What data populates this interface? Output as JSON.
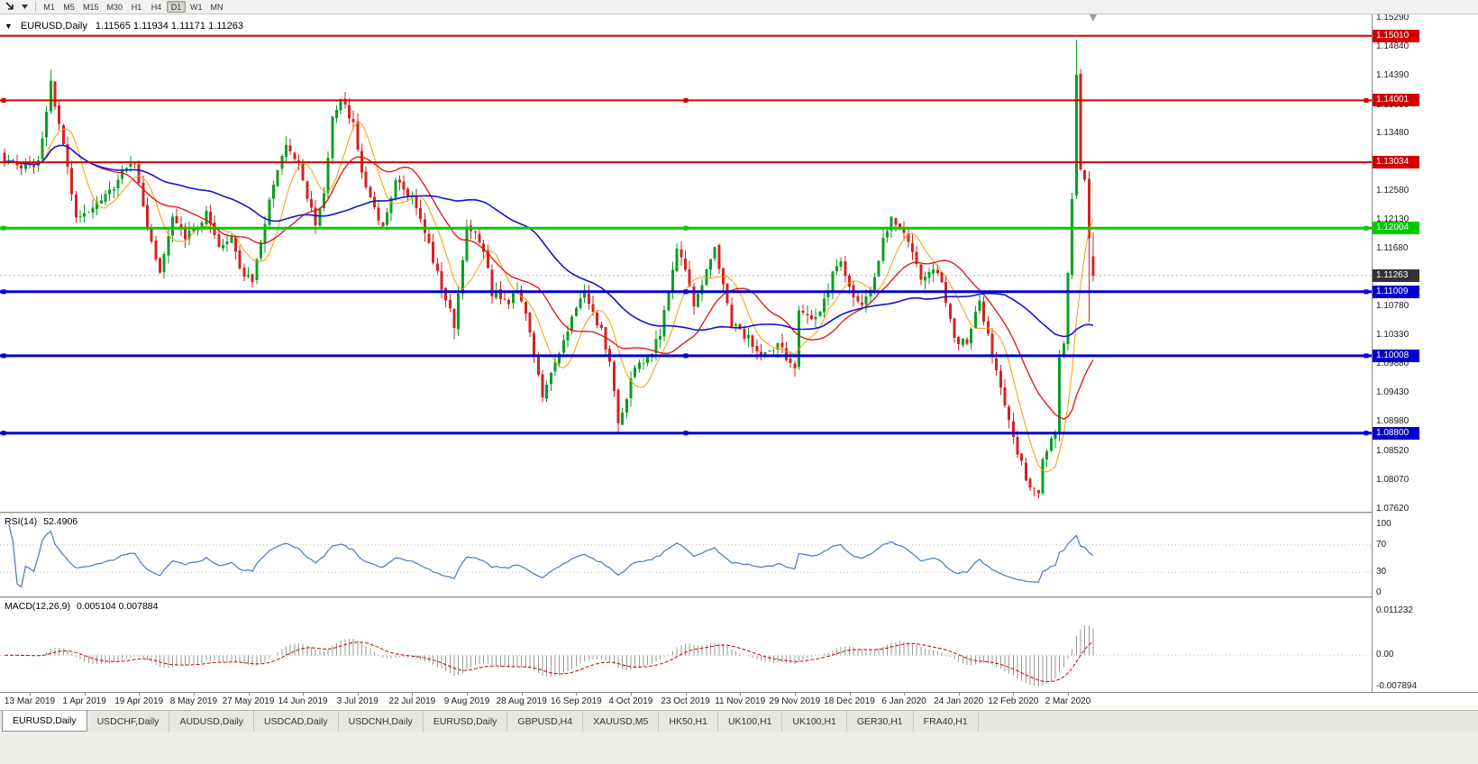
{
  "toolbar": {
    "timeframes": [
      "M1",
      "M5",
      "M15",
      "M30",
      "H1",
      "H4",
      "D1",
      "W1",
      "MN"
    ],
    "active_timeframe": "D1"
  },
  "chart_header": {
    "title": "EURUSD,Daily",
    "ohlc": "1.11565 1.11934 1.11171 1.11263"
  },
  "rsi_panel": {
    "label": "RSI(14)",
    "value": "52.4906"
  },
  "macd_panel": {
    "label": "MACD(12,26,9)",
    "values": "0.005104 0.007884"
  },
  "tabs": {
    "active_index": 0,
    "items": [
      "EURUSD,Daily",
      "USDCHF,Daily",
      "AUDUSD,Daily",
      "USDCAD,Daily",
      "USDCNH,Daily",
      "EURUSD,Daily",
      "GBPUSD,H4",
      "XAUUSD,M5",
      "HK50,H1",
      "UK100,H1",
      "UK100,H1",
      "GER30,H1",
      "FRA40,H1"
    ]
  },
  "chart_data": {
    "type": "candlestick",
    "symbol": "EURUSD",
    "timeframe": "Daily",
    "last_ohlc": {
      "open": "1.11565",
      "high": "1.11934",
      "low": "1.11171",
      "close": "1.11263"
    },
    "price_axis": {
      "top_price": 1.15345,
      "bottom_price": 1.0757,
      "tick_labels": [
        "1.15290",
        "1.14840",
        "1.14390",
        "1.13930",
        "1.13480",
        "1.13030",
        "1.12580",
        "1.12130",
        "1.11680",
        "1.10780",
        "1.10330",
        "1.09880",
        "1.09430",
        "1.08980",
        "1.08520",
        "1.08070",
        "1.07620"
      ]
    },
    "current_price": {
      "label": "1.11263",
      "value": 1.11263,
      "badge_color": "#333333"
    },
    "hlines": [
      {
        "price": 1.1501,
        "label": "1.15010",
        "color": "#d40000",
        "width": 2,
        "handles": false
      },
      {
        "price": 1.14001,
        "label": "1.14001",
        "color": "#d40000",
        "width": 2,
        "handles": true
      },
      {
        "price": 1.13034,
        "label": "1.13034",
        "color": "#d40000",
        "width": 2,
        "handles": false
      },
      {
        "price": 1.12004,
        "label": "1.12004",
        "color": "#00cc00",
        "width": 3,
        "handles": true
      },
      {
        "price": 1.11009,
        "label": "1.11009",
        "color": "#0000cc",
        "width": 3,
        "handles": true
      },
      {
        "price": 1.10008,
        "label": "1.10008",
        "color": "#0000cc",
        "width": 3,
        "handles": true
      },
      {
        "price": 1.088,
        "label": "1.08800",
        "color": "#0000cc",
        "width": 3,
        "handles": true
      }
    ],
    "x_axis": {
      "first_candle_index": 6,
      "step": 13,
      "labels": [
        "13 Mar 2019",
        "1 Apr 2019",
        "19 Apr 2019",
        "8 May 2019",
        "27 May 2019",
        "14 Jun 2019",
        "3 Jul 2019",
        "22 Jul 2019",
        "9 Aug 2019",
        "28 Aug 2019",
        "16 Sep 2019",
        "4 Oct 2019",
        "23 Oct 2019",
        "11 Nov 2019",
        "29 Nov 2019",
        "18 Dec 2019",
        "6 Jan 2020",
        "24 Jan 2020",
        "12 Feb 2020",
        "2 Mar 2020"
      ]
    },
    "candles_count": 260,
    "anchors": [
      [
        0,
        1.131
      ],
      [
        4,
        1.1295
      ],
      [
        8,
        1.13
      ],
      [
        11,
        1.1425
      ],
      [
        13,
        1.136
      ],
      [
        15,
        1.13
      ],
      [
        17,
        1.1215
      ],
      [
        20,
        1.1225
      ],
      [
        24,
        1.1248
      ],
      [
        28,
        1.1285
      ],
      [
        31,
        1.1303
      ],
      [
        34,
        1.1195
      ],
      [
        37,
        1.113
      ],
      [
        40,
        1.1215
      ],
      [
        43,
        1.1185
      ],
      [
        46,
        1.1202
      ],
      [
        48,
        1.1222
      ],
      [
        51,
        1.1165
      ],
      [
        54,
        1.1182
      ],
      [
        56,
        1.1135
      ],
      [
        59,
        1.1122
      ],
      [
        63,
        1.124
      ],
      [
        67,
        1.1334
      ],
      [
        70,
        1.13
      ],
      [
        72,
        1.125
      ],
      [
        74,
        1.1205
      ],
      [
        76,
        1.125
      ],
      [
        78,
        1.137
      ],
      [
        80,
        1.14
      ],
      [
        83,
        1.1365
      ],
      [
        85,
        1.1285
      ],
      [
        88,
        1.1227
      ],
      [
        90,
        1.1205
      ],
      [
        93,
        1.1272
      ],
      [
        96,
        1.1256
      ],
      [
        99,
        1.1218
      ],
      [
        102,
        1.115
      ],
      [
        104,
        1.1108
      ],
      [
        106,
        1.1077
      ],
      [
        107,
        1.1045
      ],
      [
        109,
        1.115
      ],
      [
        110,
        1.1198
      ],
      [
        112,
        1.1192
      ],
      [
        114,
        1.1168
      ],
      [
        116,
        1.11
      ],
      [
        118,
        1.1095
      ],
      [
        120,
        1.1085
      ],
      [
        122,
        1.1105
      ],
      [
        124,
        1.1072
      ],
      [
        126,
        1.0995
      ],
      [
        128,
        1.094
      ],
      [
        130,
        1.0975
      ],
      [
        132,
        1.101
      ],
      [
        134,
        1.1042
      ],
      [
        136,
        1.1072
      ],
      [
        138,
        1.11
      ],
      [
        140,
        1.1065
      ],
      [
        142,
        1.104
      ],
      [
        144,
        1.0992
      ],
      [
        146,
        1.0895
      ],
      [
        148,
        1.0935
      ],
      [
        150,
        1.0985
      ],
      [
        152,
        1.0996
      ],
      [
        154,
        1.1006
      ],
      [
        156,
        1.1036
      ],
      [
        158,
        1.11
      ],
      [
        160,
        1.1165
      ],
      [
        162,
        1.1132
      ],
      [
        164,
        1.108
      ],
      [
        166,
        1.111
      ],
      [
        168,
        1.115
      ],
      [
        169,
        1.1165
      ],
      [
        171,
        1.111
      ],
      [
        173,
        1.105
      ],
      [
        175,
        1.104
      ],
      [
        178,
        1.102
      ],
      [
        180,
        1.1005
      ],
      [
        182,
        1.1012
      ],
      [
        184,
        1.1016
      ],
      [
        186,
        1.1
      ],
      [
        188,
        1.0982
      ],
      [
        189,
        1.1075
      ],
      [
        191,
        1.1062
      ],
      [
        193,
        1.1056
      ],
      [
        195,
        1.1085
      ],
      [
        197,
        1.113
      ],
      [
        199,
        1.1143
      ],
      [
        201,
        1.1112
      ],
      [
        203,
        1.108
      ],
      [
        205,
        1.1092
      ],
      [
        207,
        1.112
      ],
      [
        209,
        1.118
      ],
      [
        211,
        1.1212
      ],
      [
        214,
        1.1196
      ],
      [
        216,
        1.116
      ],
      [
        218,
        1.1122
      ],
      [
        220,
        1.1127
      ],
      [
        222,
        1.1134
      ],
      [
        224,
        1.109
      ],
      [
        226,
        1.1035
      ],
      [
        227,
        1.1023
      ],
      [
        229,
        1.102
      ],
      [
        231,
        1.107
      ],
      [
        232,
        1.1093
      ],
      [
        233,
        1.106
      ],
      [
        235,
        1.1
      ],
      [
        237,
        1.0946
      ],
      [
        239,
        1.0905
      ],
      [
        240,
        1.0873
      ],
      [
        242,
        1.0831
      ],
      [
        244,
        1.0792
      ],
      [
        246,
        1.0786
      ],
      [
        247,
        1.0846
      ],
      [
        249,
        1.0866
      ],
      [
        250,
        1.088
      ],
      [
        251,
        1.1
      ],
      [
        252,
        1.1026
      ],
      [
        253,
        1.1134
      ],
      [
        254,
        1.124
      ],
      [
        255,
        1.144
      ],
      [
        256,
        1.129
      ],
      [
        257,
        1.127
      ],
      [
        258,
        1.118
      ],
      [
        259,
        1.1126
      ]
    ],
    "overrides": {
      "11": {
        "h": 1.1448
      },
      "107": {
        "l": 1.1027
      },
      "146": {
        "l": 1.0879
      },
      "246": {
        "l": 1.0778
      },
      "255": {
        "o": 1.1252,
        "h": 1.1495,
        "l": 1.1246,
        "c": 1.144
      },
      "258": {
        "l": 1.1054
      },
      "259": {
        "o": 1.11565,
        "h": 1.11934,
        "l": 1.11171,
        "c": 1.11263
      }
    },
    "candle_colors": {
      "up": "#0a9e23",
      "down": "#d42222"
    },
    "moving_averages": [
      {
        "period": 8,
        "color": "#ff9900",
        "width": 1
      },
      {
        "period": 20,
        "color": "#e01010",
        "width": 1.3
      },
      {
        "period": 50,
        "color": "#1414cc",
        "width": 1.6
      }
    ],
    "rsi": {
      "period": 14,
      "levels": [
        30,
        70
      ],
      "axis_ticks": [
        "100",
        "70",
        "30",
        "0"
      ],
      "line_color": "#4579c5"
    },
    "macd": {
      "fast": 12,
      "slow": 26,
      "signal": 9,
      "axis_ticks": [
        "0.011232",
        "0.00",
        "-0.007894"
      ],
      "max": 0.011232,
      "min": -0.007894,
      "bar_color": "#9a9a9a",
      "signal_color": "#cc0000"
    }
  }
}
